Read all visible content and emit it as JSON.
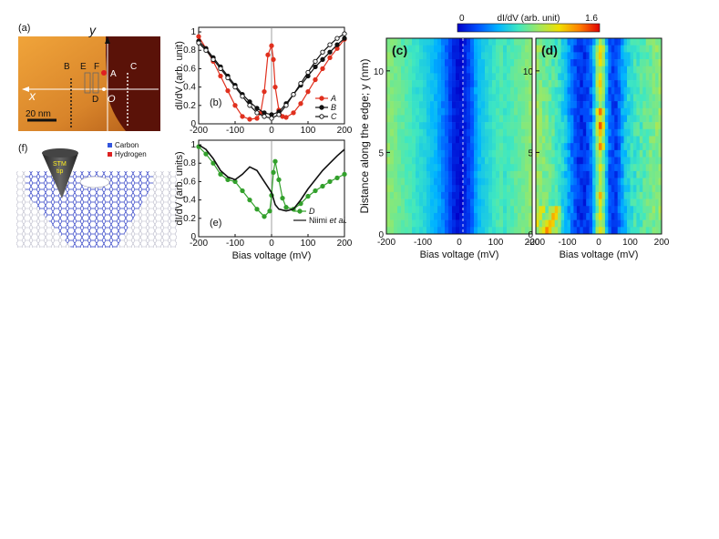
{
  "panel_labels": {
    "a": "(a)",
    "b": "(b)",
    "c": "(c)",
    "d": "(d)",
    "e": "(e)",
    "f": "(f)"
  },
  "panel_a": {
    "axis_x": "x",
    "axis_y": "y",
    "origin": "O",
    "markers": [
      "B",
      "E",
      "F",
      "A",
      "C",
      "D"
    ],
    "scalebar": "20 nm"
  },
  "panel_f": {
    "legend": [
      {
        "label": "Carbon",
        "color": "#3355dd"
      },
      {
        "label": "Hydrogen",
        "color": "#dd2222"
      }
    ],
    "tip_label_1": "STM",
    "tip_label_2": "tip"
  },
  "chart_data": [
    {
      "id": "b",
      "type": "line",
      "ylabel": "dI/dV (arb. unit)",
      "xlim": [
        -200,
        200
      ],
      "ylim": [
        0,
        1.05
      ],
      "xticks": [
        "-200",
        "-100",
        "0",
        "100",
        "200"
      ],
      "yticks": [
        "0",
        "0.2",
        "0.4",
        "0.6",
        "0.8",
        "1"
      ],
      "series": [
        {
          "name": "A",
          "color": "#e0301e",
          "marker": "filled",
          "x": [
            -200,
            -180,
            -160,
            -140,
            -120,
            -100,
            -80,
            -60,
            -40,
            -30,
            -20,
            -10,
            0,
            5,
            10,
            20,
            30,
            40,
            60,
            80,
            100,
            120,
            140,
            160,
            180,
            200
          ],
          "y": [
            0.95,
            0.82,
            0.68,
            0.52,
            0.36,
            0.2,
            0.08,
            0.05,
            0.06,
            0.12,
            0.35,
            0.75,
            0.85,
            0.7,
            0.4,
            0.15,
            0.08,
            0.07,
            0.12,
            0.22,
            0.35,
            0.48,
            0.6,
            0.72,
            0.82,
            0.92
          ]
        },
        {
          "name": "B",
          "color": "#111111",
          "marker": "filled",
          "x": [
            -200,
            -180,
            -160,
            -140,
            -120,
            -100,
            -80,
            -60,
            -40,
            -20,
            0,
            20,
            40,
            60,
            80,
            100,
            120,
            140,
            160,
            180,
            200
          ],
          "y": [
            0.9,
            0.82,
            0.72,
            0.62,
            0.52,
            0.42,
            0.32,
            0.24,
            0.17,
            0.12,
            0.1,
            0.13,
            0.22,
            0.32,
            0.42,
            0.52,
            0.62,
            0.7,
            0.78,
            0.86,
            0.93
          ]
        },
        {
          "name": "C",
          "color": "#111111",
          "marker": "open",
          "x": [
            -200,
            -180,
            -160,
            -140,
            -120,
            -100,
            -80,
            -60,
            -40,
            -20,
            0,
            20,
            40,
            60,
            80,
            100,
            120,
            140,
            160,
            180,
            200
          ],
          "y": [
            0.88,
            0.8,
            0.7,
            0.6,
            0.5,
            0.4,
            0.3,
            0.2,
            0.12,
            0.08,
            0.06,
            0.1,
            0.2,
            0.32,
            0.44,
            0.56,
            0.68,
            0.78,
            0.86,
            0.93,
            0.98
          ]
        }
      ]
    },
    {
      "id": "e",
      "type": "line",
      "ylabel": "dI/dV (arb. units)",
      "xlabel": "Bias voltage (mV)",
      "xlim": [
        -200,
        200
      ],
      "ylim": [
        0,
        1.05
      ],
      "xticks": [
        "-200",
        "-100",
        "0",
        "100",
        "200"
      ],
      "yticks": [
        "0",
        "0.2",
        "0.4",
        "0.6",
        "0.8",
        "1"
      ],
      "series": [
        {
          "name": "D",
          "color": "#33a02c",
          "marker": "filled",
          "x": [
            -200,
            -180,
            -160,
            -140,
            -120,
            -100,
            -80,
            -60,
            -40,
            -20,
            -5,
            0,
            5,
            10,
            20,
            30,
            40,
            60,
            80,
            100,
            120,
            140,
            160,
            180,
            200
          ],
          "y": [
            0.98,
            0.9,
            0.8,
            0.68,
            0.62,
            0.6,
            0.5,
            0.4,
            0.3,
            0.22,
            0.28,
            0.45,
            0.7,
            0.82,
            0.62,
            0.42,
            0.32,
            0.3,
            0.36,
            0.44,
            0.5,
            0.55,
            0.6,
            0.64,
            0.68
          ]
        },
        {
          "name": "Niimi et al.",
          "name_plain": "Niimi ",
          "name_ital": "et al.",
          "color": "#111111",
          "marker": "none",
          "x": [
            -200,
            -180,
            -160,
            -140,
            -120,
            -100,
            -80,
            -60,
            -40,
            -20,
            0,
            10,
            20,
            40,
            60,
            80,
            100,
            120,
            140,
            160,
            180,
            200
          ],
          "y": [
            1.0,
            0.95,
            0.85,
            0.72,
            0.65,
            0.62,
            0.68,
            0.76,
            0.72,
            0.6,
            0.48,
            0.35,
            0.3,
            0.28,
            0.3,
            0.4,
            0.52,
            0.62,
            0.72,
            0.8,
            0.88,
            0.95
          ]
        }
      ]
    },
    {
      "id": "c",
      "type": "heatmap",
      "xlabel": "Bias voltage (mV)",
      "ylabel": "Distance along the edge; y (nm)",
      "xticks": [
        "-200",
        "-100",
        "0",
        "100",
        "200"
      ],
      "yticks": [
        "0",
        "5",
        "10"
      ],
      "xlim": [
        -200,
        200
      ],
      "ylim": [
        0,
        12
      ]
    },
    {
      "id": "d",
      "type": "heatmap",
      "xlabel": "Bias voltage (mV)",
      "xticks": [
        "-200",
        "-100",
        "0",
        "100",
        "200"
      ],
      "yticks": [
        "0",
        "5",
        "10"
      ],
      "xlim": [
        -200,
        200
      ],
      "ylim": [
        0,
        12
      ]
    }
  ],
  "colorbar": {
    "min_label": "0",
    "title": "dI/dV (arb. unit)",
    "max_label": "1.6",
    "colors": [
      "#0000c8",
      "#0050ff",
      "#00b4ff",
      "#40e8c0",
      "#a0e860",
      "#f0e000",
      "#ff8000",
      "#e00000"
    ]
  }
}
